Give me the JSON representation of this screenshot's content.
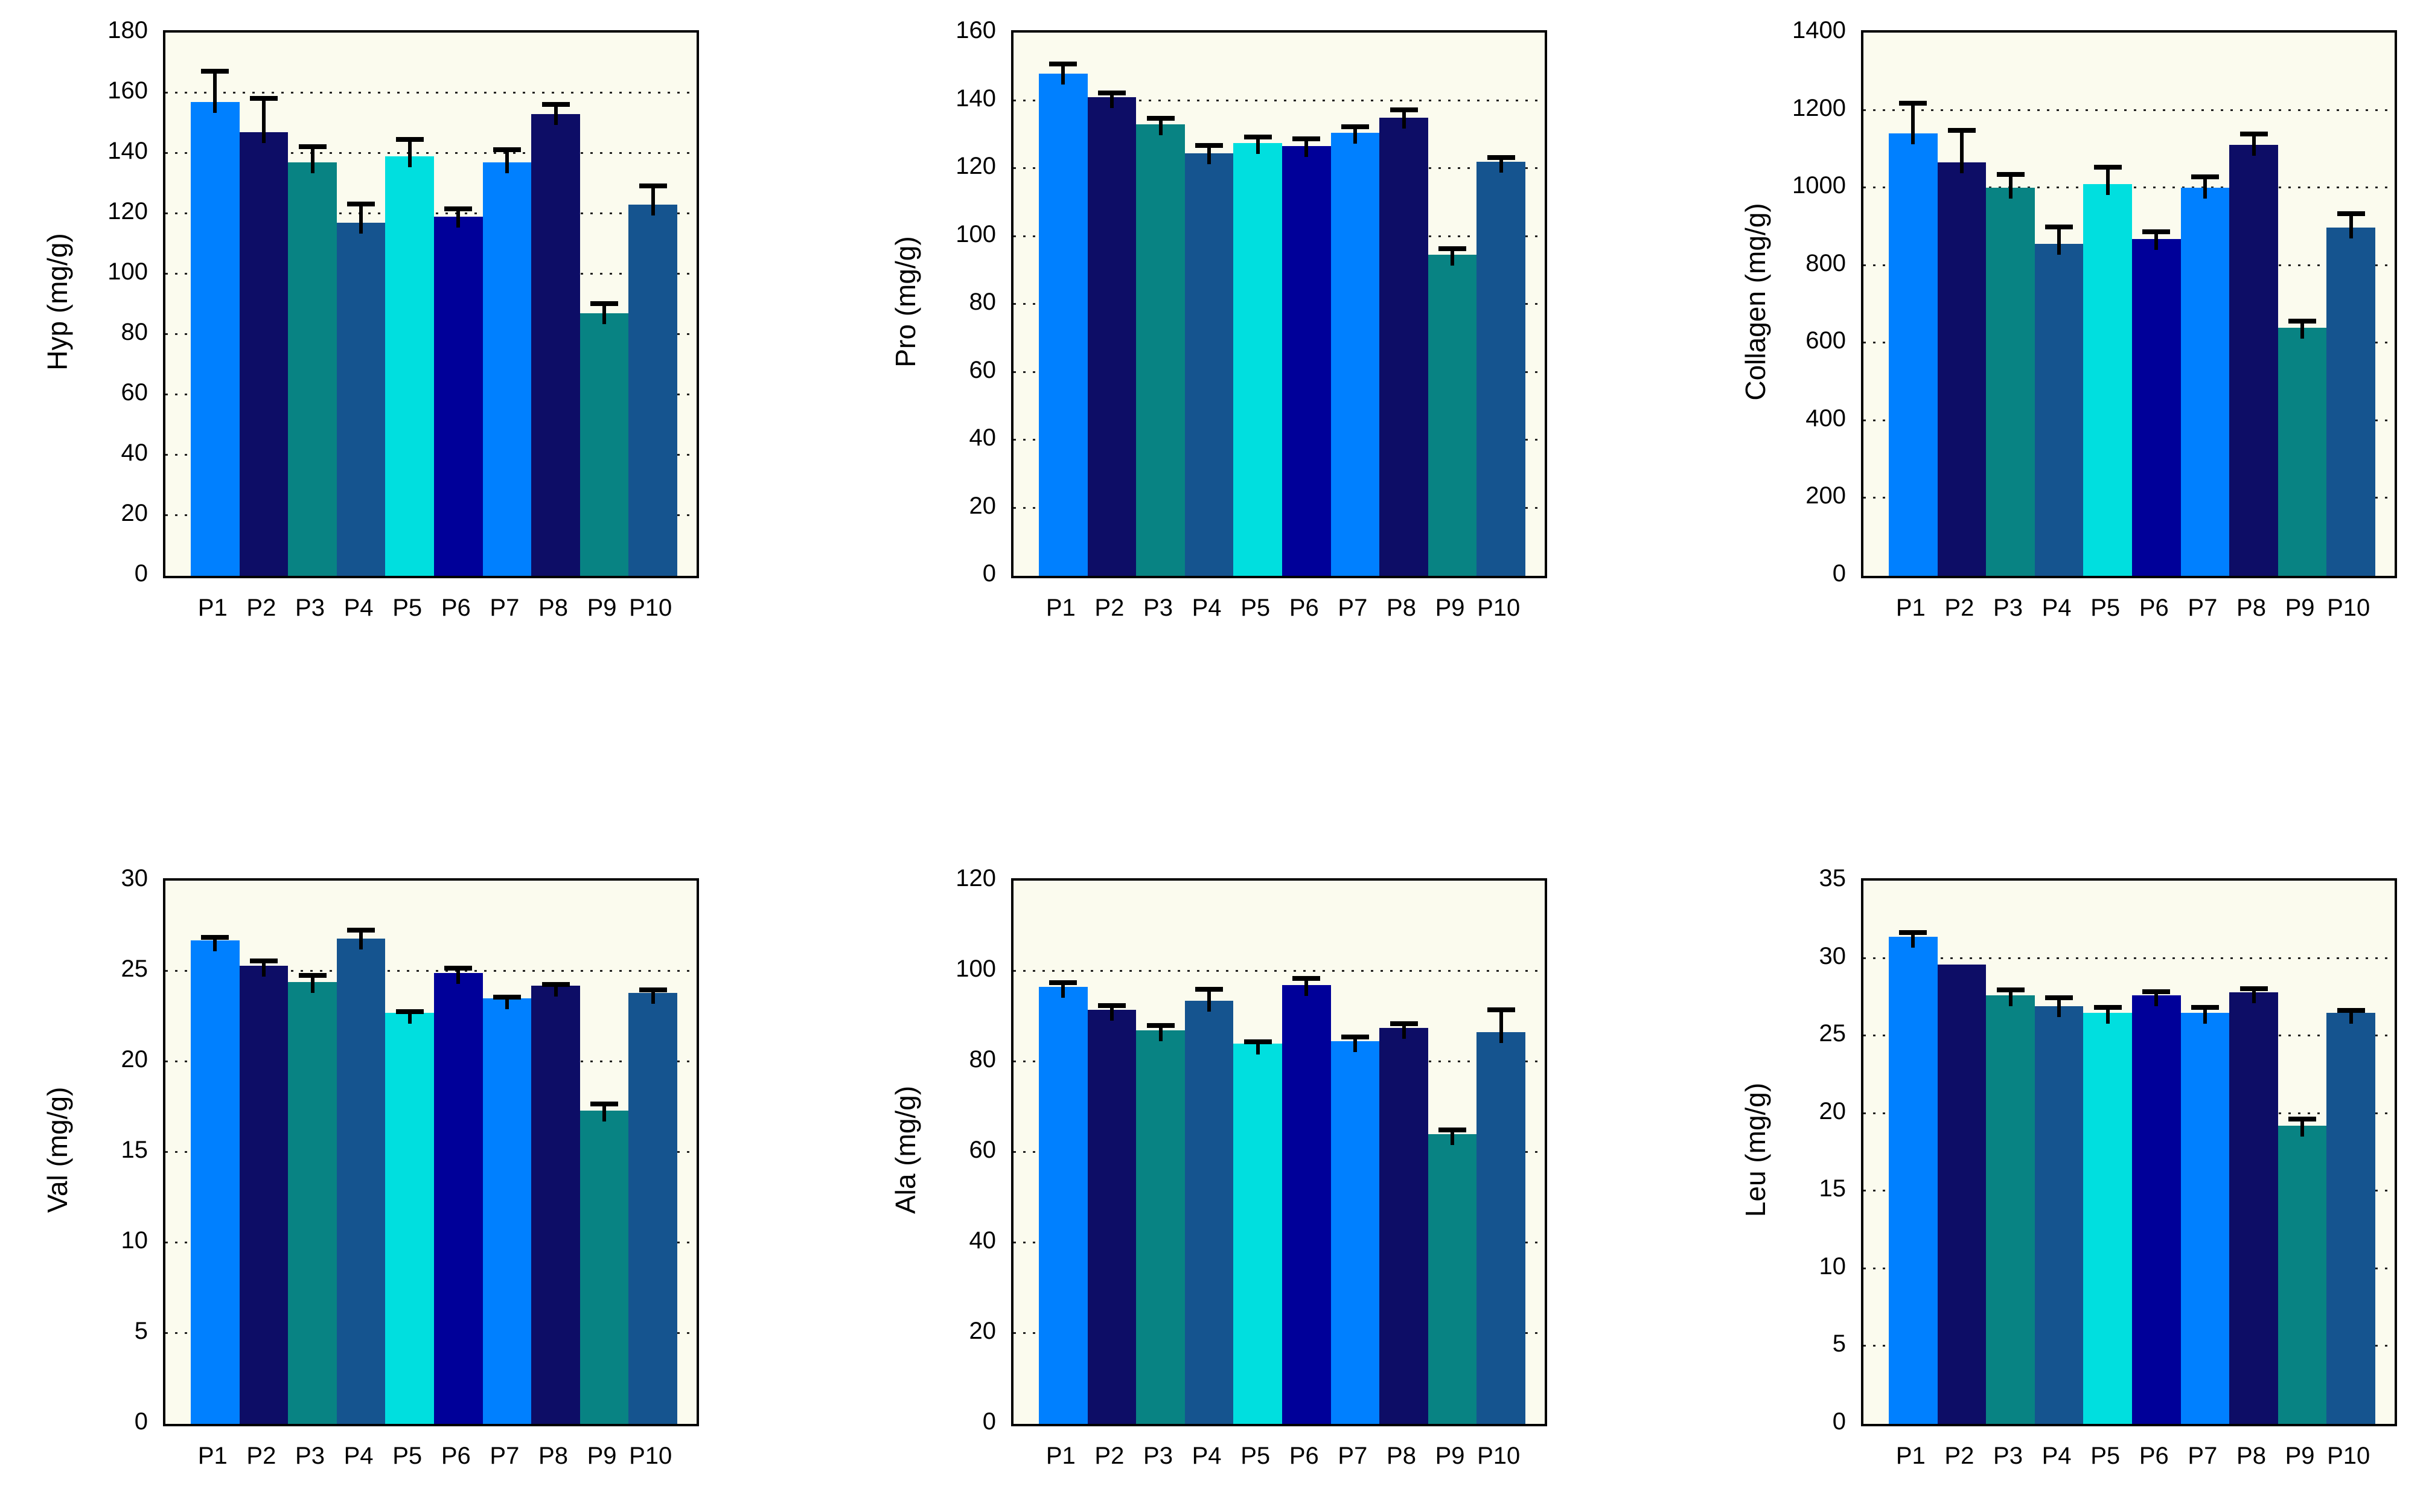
{
  "page": {
    "background": "#ffffff"
  },
  "chart_style": {
    "plot_background": "#FBFBEE",
    "frame_color": "#000000",
    "grid_color": "#1A1A1A",
    "error_bar_color": "#000000",
    "text_color": "#000000",
    "bar_colors": [
      "#0080FF",
      "#0D0D66",
      "#088383",
      "#15548F",
      "#00DFDF",
      "#000099",
      "#0080FF",
      "#0D0D66",
      "#088383",
      "#15548F"
    ]
  },
  "chart_data": [
    {
      "type": "bar",
      "ylabel": "Hyp (mg/g)",
      "categories": [
        "P1",
        "P2",
        "P3",
        "P4",
        "P5",
        "P6",
        "P7",
        "P8",
        "P9",
        "P10"
      ],
      "values": [
        157,
        147,
        137,
        117,
        139,
        119,
        137,
        153,
        87,
        123
      ],
      "errors": [
        11,
        12,
        6,
        7,
        6.5,
        3.5,
        5,
        4,
        4,
        7
      ],
      "ylim": [
        0,
        180
      ],
      "ytick_step": 20,
      "grid": "dotted-horizontal",
      "legend": null
    },
    {
      "type": "bar",
      "ylabel": "Pro (mg/g)",
      "categories": [
        "P1",
        "P2",
        "P3",
        "P4",
        "P5",
        "P6",
        "P7",
        "P8",
        "P9",
        "P10"
      ],
      "values": [
        148,
        141,
        133,
        124.5,
        127.5,
        126.5,
        130.5,
        135,
        94.5,
        122
      ],
      "errors": [
        3.5,
        2,
        2.5,
        3,
        2.5,
        3,
        2.5,
        3,
        2.5,
        2
      ],
      "ylim": [
        0,
        160
      ],
      "ytick_step": 20,
      "grid": "dotted-horizontal",
      "legend": null
    },
    {
      "type": "bar",
      "ylabel": "Collagen (mg/g)",
      "categories": [
        "P1",
        "P2",
        "P3",
        "P4",
        "P5",
        "P6",
        "P7",
        "P8",
        "P9",
        "P10"
      ],
      "values": [
        1140,
        1065,
        1000,
        855,
        1010,
        868,
        1000,
        1110,
        640,
        898
      ],
      "errors": [
        85,
        90,
        40,
        50,
        50,
        25,
        35,
        35,
        22,
        42
      ],
      "ylim": [
        0,
        1400
      ],
      "ytick_step": 200,
      "grid": "dotted-horizontal",
      "legend": null
    },
    {
      "type": "bar",
      "ylabel": "Val (mg/g)",
      "categories": [
        "P1",
        "P2",
        "P3",
        "P4",
        "P5",
        "P6",
        "P7",
        "P8",
        "P9",
        "P10"
      ],
      "values": [
        26.7,
        25.3,
        24.4,
        26.8,
        22.7,
        24.9,
        23.5,
        24.2,
        17.3,
        23.8
      ],
      "errors": [
        0.3,
        0.4,
        0.5,
        0.6,
        0.2,
        0.4,
        0.2,
        0.2,
        0.5,
        0.3
      ],
      "ylim": [
        0,
        30
      ],
      "ytick_step": 5,
      "grid": "dotted-horizontal",
      "legend": null
    },
    {
      "type": "bar",
      "ylabel": "Ala (mg/g)",
      "categories": [
        "P1",
        "P2",
        "P3",
        "P4",
        "P5",
        "P6",
        "P7",
        "P8",
        "P9",
        "P10"
      ],
      "values": [
        96.5,
        91.5,
        87,
        93.5,
        84,
        97,
        84.5,
        87.5,
        64,
        86.5
      ],
      "errors": [
        1.5,
        1.5,
        1.5,
        3,
        1,
        2,
        1.5,
        1.5,
        1.5,
        5.5
      ],
      "ylim": [
        0,
        120
      ],
      "ytick_step": 20,
      "grid": "dotted-horizontal",
      "legend": null
    },
    {
      "type": "bar",
      "ylabel": "Leu (mg/g)",
      "categories": [
        "P1",
        "P2",
        "P3",
        "P4",
        "P5",
        "P6",
        "P7",
        "P8",
        "P9",
        "P10"
      ],
      "values": [
        31.4,
        29.6,
        27.6,
        26.9,
        26.5,
        27.6,
        26.5,
        27.8,
        19.2,
        26.5
      ],
      "errors": [
        0.4,
        0,
        0.5,
        0.7,
        0.5,
        0.4,
        0.5,
        0.4,
        0.6,
        0.3
      ],
      "ylim": [
        0,
        35
      ],
      "ytick_step": 5,
      "grid": "dotted-horizontal",
      "legend": null
    }
  ]
}
